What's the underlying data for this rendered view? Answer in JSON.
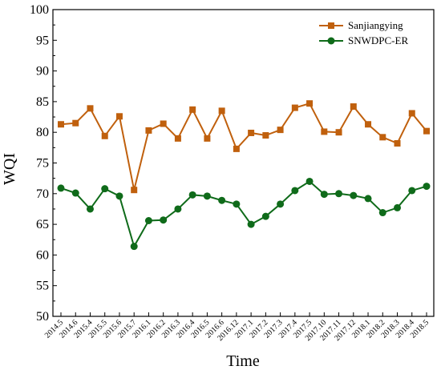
{
  "chart_data": {
    "type": "line",
    "xlabel": "Time",
    "ylabel": "WQI",
    "ylim": [
      50,
      100
    ],
    "yticks": [
      50,
      55,
      60,
      65,
      70,
      75,
      80,
      85,
      90,
      95,
      100
    ],
    "grid": false,
    "legend": "top-right",
    "categories": [
      "2014.5",
      "2014.6",
      "2015.4",
      "2015.5",
      "2015.6",
      "2015.7",
      "2016.1",
      "2016.2",
      "2016.3",
      "2016.4",
      "2016.5",
      "2016.6",
      "2016.12",
      "2017.1",
      "2017.2",
      "2017.3",
      "2017.4",
      "2017.5",
      "2017.10",
      "2017.11",
      "2017.12",
      "2018.1",
      "2018.2",
      "2018.3",
      "2018.4",
      "2018.5"
    ],
    "series": [
      {
        "name": "Sanjiangying",
        "color": "#c0600d",
        "marker": "square",
        "values": [
          81.3,
          81.5,
          83.9,
          79.4,
          82.6,
          70.6,
          80.3,
          81.4,
          79.0,
          83.7,
          79.0,
          83.5,
          77.3,
          79.9,
          79.5,
          80.4,
          84.0,
          84.7,
          80.1,
          80.0,
          84.2,
          81.3,
          79.2,
          78.2,
          83.1,
          80.2
        ]
      },
      {
        "name": "SNWDPC-ER",
        "color": "#0f6b1a",
        "marker": "circle",
        "values": [
          70.9,
          70.1,
          67.5,
          70.8,
          69.6,
          61.4,
          65.6,
          65.7,
          67.5,
          69.8,
          69.6,
          68.9,
          68.3,
          65.0,
          66.3,
          68.3,
          70.5,
          72.0,
          69.9,
          70.0,
          69.7,
          69.2,
          66.9,
          67.7,
          70.5,
          71.2
        ]
      }
    ]
  }
}
